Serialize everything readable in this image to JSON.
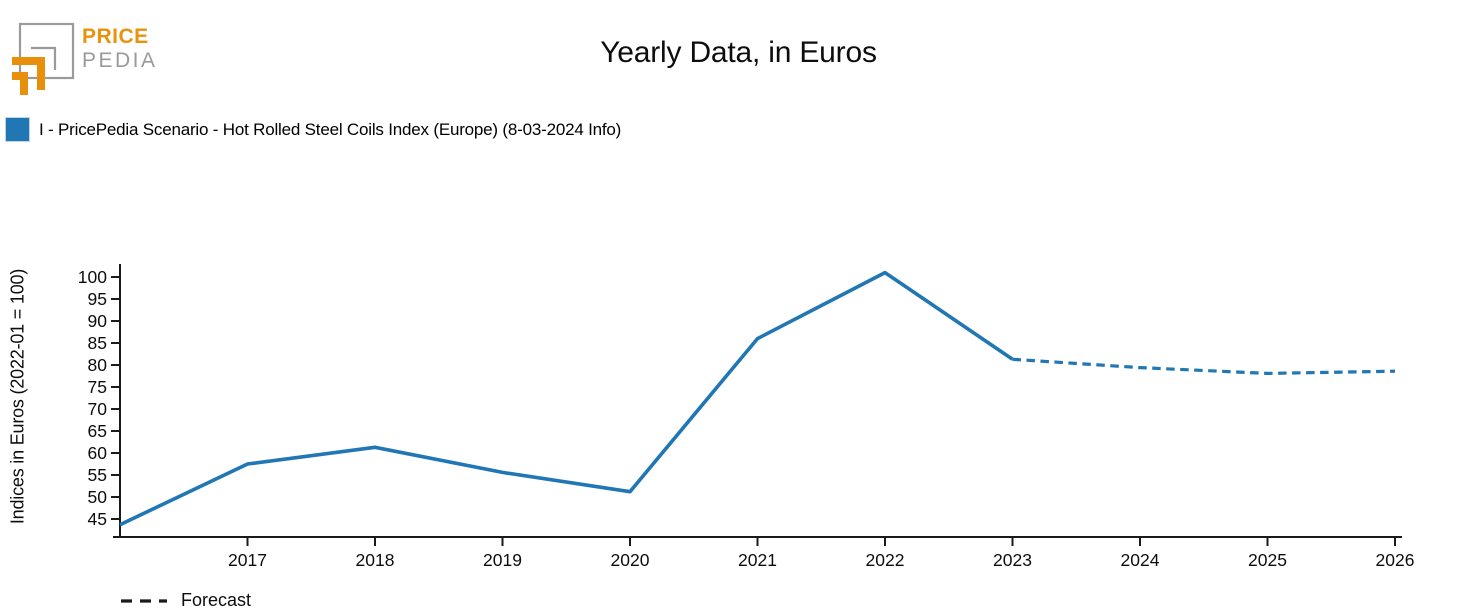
{
  "logo": {
    "primary": "PRICE",
    "secondary": "PEDIA",
    "orange": "#e8900c",
    "gray": "#9a9a9a"
  },
  "header": {
    "title": "Yearly Data, in Euros"
  },
  "legend": {
    "series_label": "I - PricePedia Scenario - Hot Rolled Steel Coils Index (Europe) (8-03-2024 Info)",
    "swatch_color": "#2176b4"
  },
  "footer_legend": {
    "label": "Forecast"
  },
  "chart_data": {
    "type": "line",
    "title": "Yearly Data, in Euros",
    "xlabel": "",
    "ylabel": "Indices in Euros (2022-01 = 100)",
    "x": [
      2016,
      2017,
      2018,
      2019,
      2020,
      2021,
      2022,
      2023,
      2024,
      2025,
      2026
    ],
    "series": [
      {
        "name": "I - PricePedia Scenario - Hot Rolled Steel Coils Index (Europe) (8-03-2024 Info)",
        "values": [
          43.7,
          57.5,
          61.3,
          55.6,
          51.2,
          86.0,
          101.0,
          81.3,
          79.4,
          78.1,
          78.6
        ],
        "color": "#2176b4",
        "solid_until_x": 2023,
        "forecast_style": "dashed"
      }
    ],
    "x_ticks": [
      2017,
      2018,
      2019,
      2020,
      2021,
      2022,
      2023,
      2024,
      2025,
      2026
    ],
    "y_ticks": [
      45,
      50,
      55,
      60,
      65,
      70,
      75,
      80,
      85,
      90,
      95,
      100
    ],
    "xlim": [
      2016,
      2026.05
    ],
    "ylim": [
      40.9,
      102.7
    ],
    "grid": false,
    "legend_position": "top-left",
    "axis_color": "#1a1a1a",
    "tick_font_size": 17.5
  }
}
